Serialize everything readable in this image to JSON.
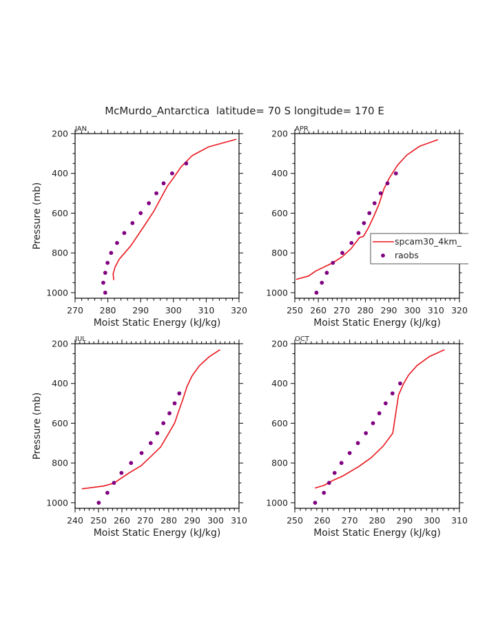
{
  "chart_data": {
    "type": "line",
    "title": "McMurdo_Antarctica  latitude= 70 S longitude= 170 E",
    "legend": {
      "placement": "right-middle of APR panel",
      "entries": [
        {
          "label": "spcam30_4km_",
          "style": "line",
          "color": "#e8141b"
        },
        {
          "label": "raobs",
          "style": "marker",
          "color": "#800080"
        }
      ]
    },
    "colors": {
      "model": "#e8141b",
      "obs": "#800080",
      "axis": "#000000",
      "text": "#222222"
    },
    "panels": [
      {
        "name": "JAN",
        "xlabel": "Moist Static Energy (kJ/kg)",
        "ylabel": "Pressure (mb)",
        "xlim": [
          270,
          320
        ],
        "ylim": [
          1028,
          200
        ],
        "xticks": [
          270,
          280,
          290,
          300,
          310,
          320
        ],
        "yticks": [
          200,
          400,
          600,
          800,
          1000
        ],
        "show_ylabel": true,
        "show_legend": false,
        "series": [
          {
            "name": "spcam30_4km_",
            "kind": "line",
            "x": [
              281.8,
              281.6,
              282.2,
              283.4,
              287.0,
              290.8,
              294.0,
              298.2,
              299.8,
              302.4,
              305.7,
              310.8,
              319.2
            ],
            "y": [
              937,
              906,
              871,
              833,
              764,
              671,
              591,
              463,
              428,
              366,
              311,
              266,
              228
            ]
          },
          {
            "name": "raobs",
            "kind": "marker",
            "x": [
              303.9,
              299.6,
              297.0,
              294.8,
              292.5,
              290.0,
              287.5,
              285.0,
              282.8,
              281.0,
              279.9,
              279.2,
              278.6,
              279.2
            ],
            "y": [
              350,
              400,
              450,
              500,
              550,
              600,
              650,
              700,
              750,
              800,
              850,
              900,
              950,
              1000
            ]
          }
        ]
      },
      {
        "name": "APR",
        "xlabel": "Moist Static Energy (kJ/kg)",
        "ylabel": "",
        "xlim": [
          250,
          320
        ],
        "ylim": [
          1028,
          200
        ],
        "xticks": [
          250,
          260,
          270,
          280,
          290,
          300,
          310,
          320
        ],
        "yticks": [
          200,
          400,
          600,
          800,
          1000
        ],
        "show_ylabel": false,
        "show_legend": true,
        "series": [
          {
            "name": "spcam30_4km_",
            "kind": "line",
            "x": [
              250.6,
              255.9,
              258.8,
              266.1,
              270.2,
              274.0,
              277.5,
              279.2,
              281.4,
              283.6,
              285.8,
              287.9,
              290.2,
              293.6,
              297.5,
              303.1,
              310.9
            ],
            "y": [
              933,
              916,
              892,
              850,
              819,
              778,
              723,
              717,
              671,
              616,
              555,
              478,
              423,
              360,
              309,
              263,
              230
            ]
          },
          {
            "name": "raobs",
            "kind": "marker",
            "x": [
              293.0,
              289.4,
              286.5,
              283.9,
              281.7,
              279.4,
              277.1,
              274.1,
              270.2,
              266.2,
              263.6,
              261.5,
              259.2
            ],
            "y": [
              400,
              450,
              500,
              550,
              600,
              650,
              700,
              750,
              800,
              850,
              900,
              950,
              1000
            ]
          }
        ]
      },
      {
        "name": "JUL",
        "xlabel": "Moist Static Energy (kJ/kg)",
        "ylabel": "Pressure (mb)",
        "xlim": [
          240,
          310
        ],
        "ylim": [
          1028,
          200
        ],
        "xticks": [
          240,
          250,
          260,
          270,
          280,
          290,
          300,
          310
        ],
        "yticks": [
          200,
          400,
          600,
          800,
          1000
        ],
        "show_ylabel": true,
        "show_legend": false,
        "series": [
          {
            "name": "spcam30_4km_",
            "kind": "line",
            "x": [
              242.9,
              252.1,
              256.5,
              263.2,
              268.2,
              272.6,
              276.5,
              280.0,
              282.5,
              284.0,
              285.9,
              287.8,
              289.9,
              293.0,
              297.2,
              301.9
            ],
            "y": [
              930,
              916,
              902,
              849,
              814,
              765,
              720,
              650,
              599,
              547,
              484,
              415,
              363,
              312,
              266,
              230
            ]
          },
          {
            "name": "raobs",
            "kind": "marker",
            "x": [
              284.5,
              282.5,
              280.3,
              277.7,
              275.1,
              272.3,
              268.4,
              263.9,
              259.8,
              256.6,
              253.8,
              250.1
            ],
            "y": [
              450,
              500,
              550,
              600,
              650,
              700,
              750,
              800,
              850,
              900,
              950,
              1000
            ]
          }
        ]
      },
      {
        "name": "OCT",
        "xlabel": "Moist Static Energy (kJ/kg)",
        "ylabel": "",
        "xlim": [
          250,
          310
        ],
        "ylim": [
          1028,
          200
        ],
        "xticks": [
          250,
          260,
          270,
          280,
          290,
          300,
          310
        ],
        "yticks": [
          200,
          400,
          600,
          800,
          1000
        ],
        "show_ylabel": false,
        "show_legend": false,
        "series": [
          {
            "name": "spcam30_4km_",
            "kind": "line",
            "x": [
              257.3,
              260.8,
              263.8,
              267.3,
              273.2,
              277.8,
              282.2,
              285.7,
              287.8,
              289.7,
              291.4,
              294.5,
              299.1,
              304.6
            ],
            "y": [
              926,
              912,
              888,
              867,
              819,
              774,
              715,
              650,
              458,
              400,
              359,
              310,
              264,
              230
            ]
          },
          {
            "name": "raobs",
            "kind": "marker",
            "x": [
              288.4,
              285.6,
              283.1,
              280.8,
              278.5,
              275.9,
              273.0,
              270.0,
              267.0,
              264.5,
              262.5,
              260.6,
              257.4
            ],
            "y": [
              400,
              450,
              500,
              550,
              600,
              650,
              700,
              750,
              800,
              850,
              900,
              950,
              1000
            ]
          }
        ]
      }
    ]
  }
}
